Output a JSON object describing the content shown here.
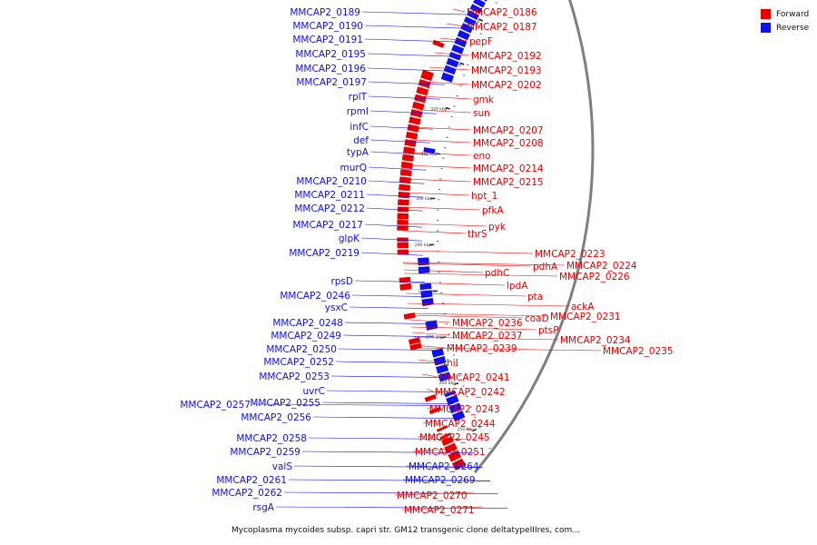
{
  "legend": [
    {
      "label": "Forward",
      "color": "#e80000"
    },
    {
      "label": "Reverse",
      "color": "#1010e8"
    }
  ],
  "caption": "Mycoplasma mycoides subsp. capri str. GM12 transgenic clone deltatypeIIIres, com...",
  "colors": {
    "forward": "#e80000",
    "reverse": "#1010e8",
    "backbone": "#7f7f7f"
  },
  "ticks": [
    "250 kbp",
    "260 kbp",
    "270 kbp",
    "280 kbp",
    "290 kbp",
    "300 kbp",
    "310 kbp",
    "320 kbp",
    "330 kbp",
    "340 kbp",
    "350 kbp",
    "360 kbp"
  ],
  "reverse_labels": [
    "MMCAP2_0189",
    "MMCAP2_0190",
    "MMCAP2_0191",
    "MMCAP2_0195",
    "MMCAP2_0196",
    "MMCAP2_0197",
    "rplT",
    "rpmI",
    "infC",
    "def",
    "typA",
    "murQ",
    "MMCAP2_0210",
    "MMCAP2_0211",
    "MMCAP2_0212",
    "MMCAP2_0217",
    "glpK",
    "MMCAP2_0219",
    "rpsD",
    "MMCAP2_0246",
    "ysxC",
    "MMCAP2_0248",
    "MMCAP2_0249",
    "MMCAP2_0250",
    "MMCAP2_0252",
    "MMCAP2_0253",
    "uvrC",
    "MMCAP2_0257",
    "MMCAP2_0255",
    "MMCAP2_0256",
    "MMCAP2_0258",
    "MMCAP2_0259",
    "valS",
    "MMCAP2_0261",
    "MMCAP2_0262",
    "rsgA",
    "MMCAP2_0264",
    "MMCAP2_0269"
  ],
  "forward_labels": [
    "MMCAP2_0186",
    "MMCAP2_0187",
    "pepF",
    "MMCAP2_0192",
    "MMCAP2_0193",
    "MMCAP2_0202",
    "gmk",
    "sun",
    "MMCAP2_0207",
    "MMCAP2_0208",
    "eno",
    "MMCAP2_0214",
    "MMCAP2_0215",
    "hpt_1",
    "pfkA",
    "pyk",
    "thrS",
    "MMCAP2_0223",
    "pdhA",
    "MMCAP2_0224",
    "pdhC",
    "MMCAP2_0226",
    "lpdA",
    "pta",
    "ackA",
    "coaD",
    "MMCAP2_0231",
    "MMCAP2_0236",
    "ptsP",
    "MMCAP2_0237",
    "MMCAP2_0234",
    "MMCAP2_0235",
    "MMCAP2_0239",
    "thiI",
    "MMCAP2_0241",
    "MMCAP2_0242",
    "MMCAP2_0243",
    "MMCAP2_0244",
    "MMCAP2_0245",
    "MMCAP2_0251",
    "MMCAP2_0270",
    "MMCAP2_0271"
  ]
}
